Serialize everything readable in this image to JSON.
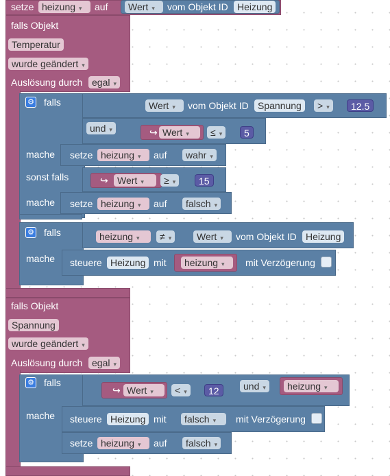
{
  "colors": {
    "event": "#a55b80",
    "control": "#5b80a5",
    "number": "#5b5ba5"
  },
  "top": {
    "setze": "setze",
    "var": "heizung",
    "auf": "auf",
    "wert": "Wert",
    "vom": "vom Objekt ID",
    "id": "Heizung"
  },
  "trigger1": {
    "falls_obj": "falls Objekt",
    "obj": "Temperatur",
    "changed": "wurde geändert",
    "ausl": "Auslösung durch",
    "egal": "egal"
  },
  "if1": {
    "falls": "falls",
    "wert": "Wert",
    "vom": "vom Objekt ID",
    "id": "Spannung",
    "op": ">",
    "num": "12.5",
    "und": "und",
    "arrow": "↪",
    "wert2": "Wert",
    "op2": "≤",
    "num2": "5",
    "mache": "mache",
    "setze": "setze",
    "var": "heizung",
    "auf": "auf",
    "val": "wahr",
    "sonst": "sonst falls",
    "wert3": "Wert",
    "op3": "≥",
    "num3": "15",
    "mache2": "mache",
    "setze2": "setze",
    "var2": "heizung",
    "auf2": "auf",
    "val2": "falsch"
  },
  "if2": {
    "falls": "falls",
    "var": "heizung",
    "op": "≠",
    "wert": "Wert",
    "vom": "vom Objekt ID",
    "id": "Heizung",
    "mache": "mache",
    "steuere": "steuere",
    "obj": "Heizung",
    "mit": "mit",
    "var2": "heizung",
    "verz": "mit Verzögerung"
  },
  "trigger2": {
    "falls_obj": "falls Objekt",
    "obj": "Spannung",
    "changed": "wurde geändert",
    "ausl": "Auslösung durch",
    "egal": "egal"
  },
  "if3": {
    "falls": "falls",
    "arrow": "↪",
    "wert": "Wert",
    "op": "<",
    "num": "12",
    "und": "und",
    "var": "heizung",
    "mache": "mache",
    "steuere": "steuere",
    "obj": "Heizung",
    "mit": "mit",
    "val": "falsch",
    "verz": "mit Verzögerung",
    "setze": "setze",
    "var2": "heizung",
    "auf": "auf",
    "val2": "falsch"
  }
}
